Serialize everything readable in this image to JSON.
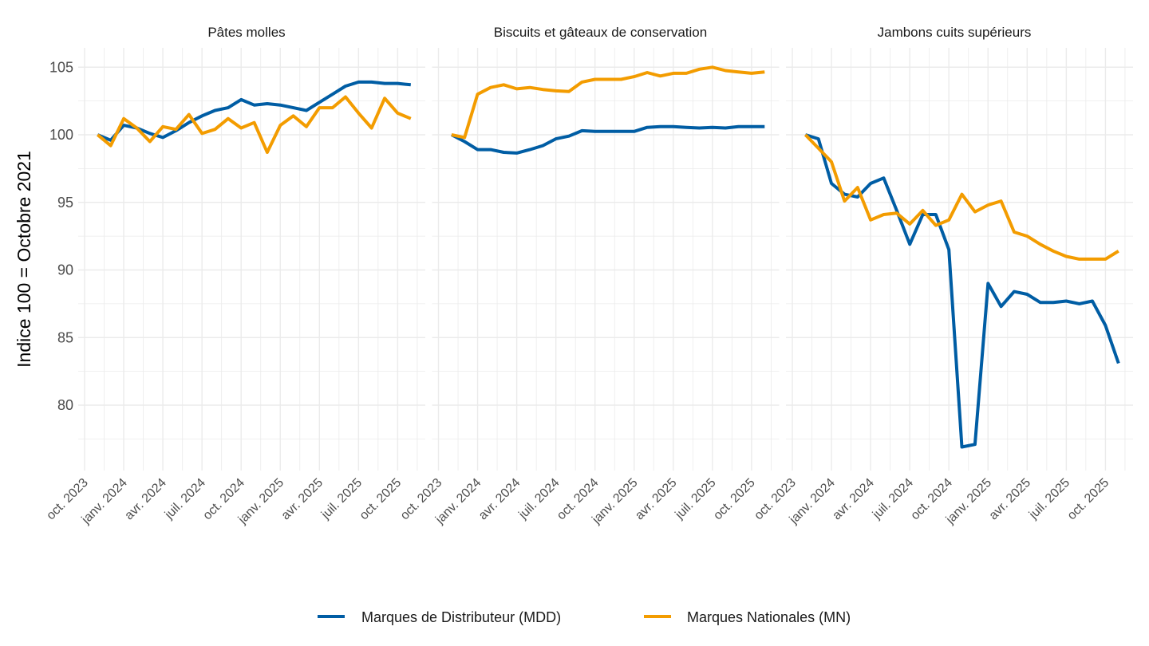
{
  "chart_data": {
    "type": "line",
    "ylabel": "Indice 100 = Octobre 2021",
    "ylim": [
      75.2,
      106.4
    ],
    "yticks": [
      "80",
      "85",
      "90",
      "95",
      "100",
      "105"
    ],
    "ytick_values": [
      80,
      85,
      90,
      95,
      100,
      105
    ],
    "xtick_labels": [
      "oct. 2023",
      "janv. 2024",
      "avr. 2024",
      "juil. 2024",
      "oct. 2024",
      "janv. 2025",
      "avr. 2025",
      "juil. 2025",
      "oct. 2025"
    ],
    "x": [
      "2023-11",
      "2023-12",
      "2024-01",
      "2024-02",
      "2024-03",
      "2024-04",
      "2024-05",
      "2024-06",
      "2024-07",
      "2024-08",
      "2024-09",
      "2024-10",
      "2024-11",
      "2024-12",
      "2025-01",
      "2025-02",
      "2025-03",
      "2025-04",
      "2025-05",
      "2025-06",
      "2025-07",
      "2025-08",
      "2025-09",
      "2025-10",
      "2025-11"
    ],
    "grid": true,
    "legend_position": "bottom",
    "legend": [
      {
        "name": "Marques de Distributeur (MDD)",
        "color": "#005DA4"
      },
      {
        "name": "Marques Nationales (MN)",
        "color": "#F39C00"
      }
    ],
    "panels": [
      {
        "title": "Pâtes molles",
        "series": [
          {
            "name": "Marques de Distributeur (MDD)",
            "values": [
              100,
              99.6,
              100.7,
              100.5,
              100.1,
              99.8,
              100.3,
              100.9,
              101.4,
              101.8,
              102.0,
              102.6,
              102.2,
              102.3,
              102.2,
              102.0,
              101.8,
              102.4,
              103.0,
              103.6,
              103.9,
              103.9,
              103.8,
              103.8,
              103.7
            ]
          },
          {
            "name": "Marques Nationales (MN)",
            "values": [
              100,
              99.2,
              101.2,
              100.5,
              99.5,
              100.6,
              100.4,
              101.5,
              100.1,
              100.4,
              101.2,
              100.5,
              100.9,
              98.7,
              100.7,
              101.4,
              100.6,
              102.0,
              102.0,
              102.8,
              101.6,
              100.5,
              102.7,
              101.6,
              101.2
            ]
          }
        ]
      },
      {
        "title": "Biscuits et gâteaux de conservation",
        "series": [
          {
            "name": "Marques de Distributeur (MDD)",
            "values": [
              100,
              99.5,
              98.9,
              98.9,
              98.7,
              98.65,
              98.9,
              99.2,
              99.7,
              99.9,
              100.3,
              100.25,
              100.25,
              100.25,
              100.25,
              100.55,
              100.6,
              100.6,
              100.55,
              100.5,
              100.55,
              100.5,
              100.6,
              100.6,
              100.6
            ]
          },
          {
            "name": "Marques Nationales (MN)",
            "values": [
              100,
              99.8,
              103.0,
              103.5,
              103.7,
              103.4,
              103.5,
              103.35,
              103.25,
              103.2,
              103.9,
              104.1,
              104.1,
              104.1,
              104.3,
              104.6,
              104.35,
              104.55,
              104.55,
              104.85,
              105.0,
              104.75,
              104.65,
              104.55,
              104.65
            ]
          }
        ]
      },
      {
        "title": "Jambons cuits supérieurs",
        "series": [
          {
            "name": "Marques de Distributeur (MDD)",
            "values": [
              100,
              99.7,
              96.4,
              95.6,
              95.4,
              96.4,
              96.8,
              94.4,
              91.9,
              94.1,
              94.1,
              91.5,
              76.9,
              77.1,
              89.0,
              87.3,
              88.4,
              88.2,
              87.6,
              87.6,
              87.7,
              87.5,
              87.7,
              85.9,
              83.1
            ]
          },
          {
            "name": "Marques Nationales (MN)",
            "values": [
              100,
              99.0,
              98.0,
              95.1,
              96.1,
              93.7,
              94.1,
              94.2,
              93.4,
              94.4,
              93.3,
              93.7,
              95.6,
              94.3,
              94.8,
              95.1,
              92.8,
              92.5,
              91.9,
              91.4,
              91.0,
              90.8,
              90.8,
              90.8,
              91.4
            ]
          }
        ]
      }
    ]
  }
}
